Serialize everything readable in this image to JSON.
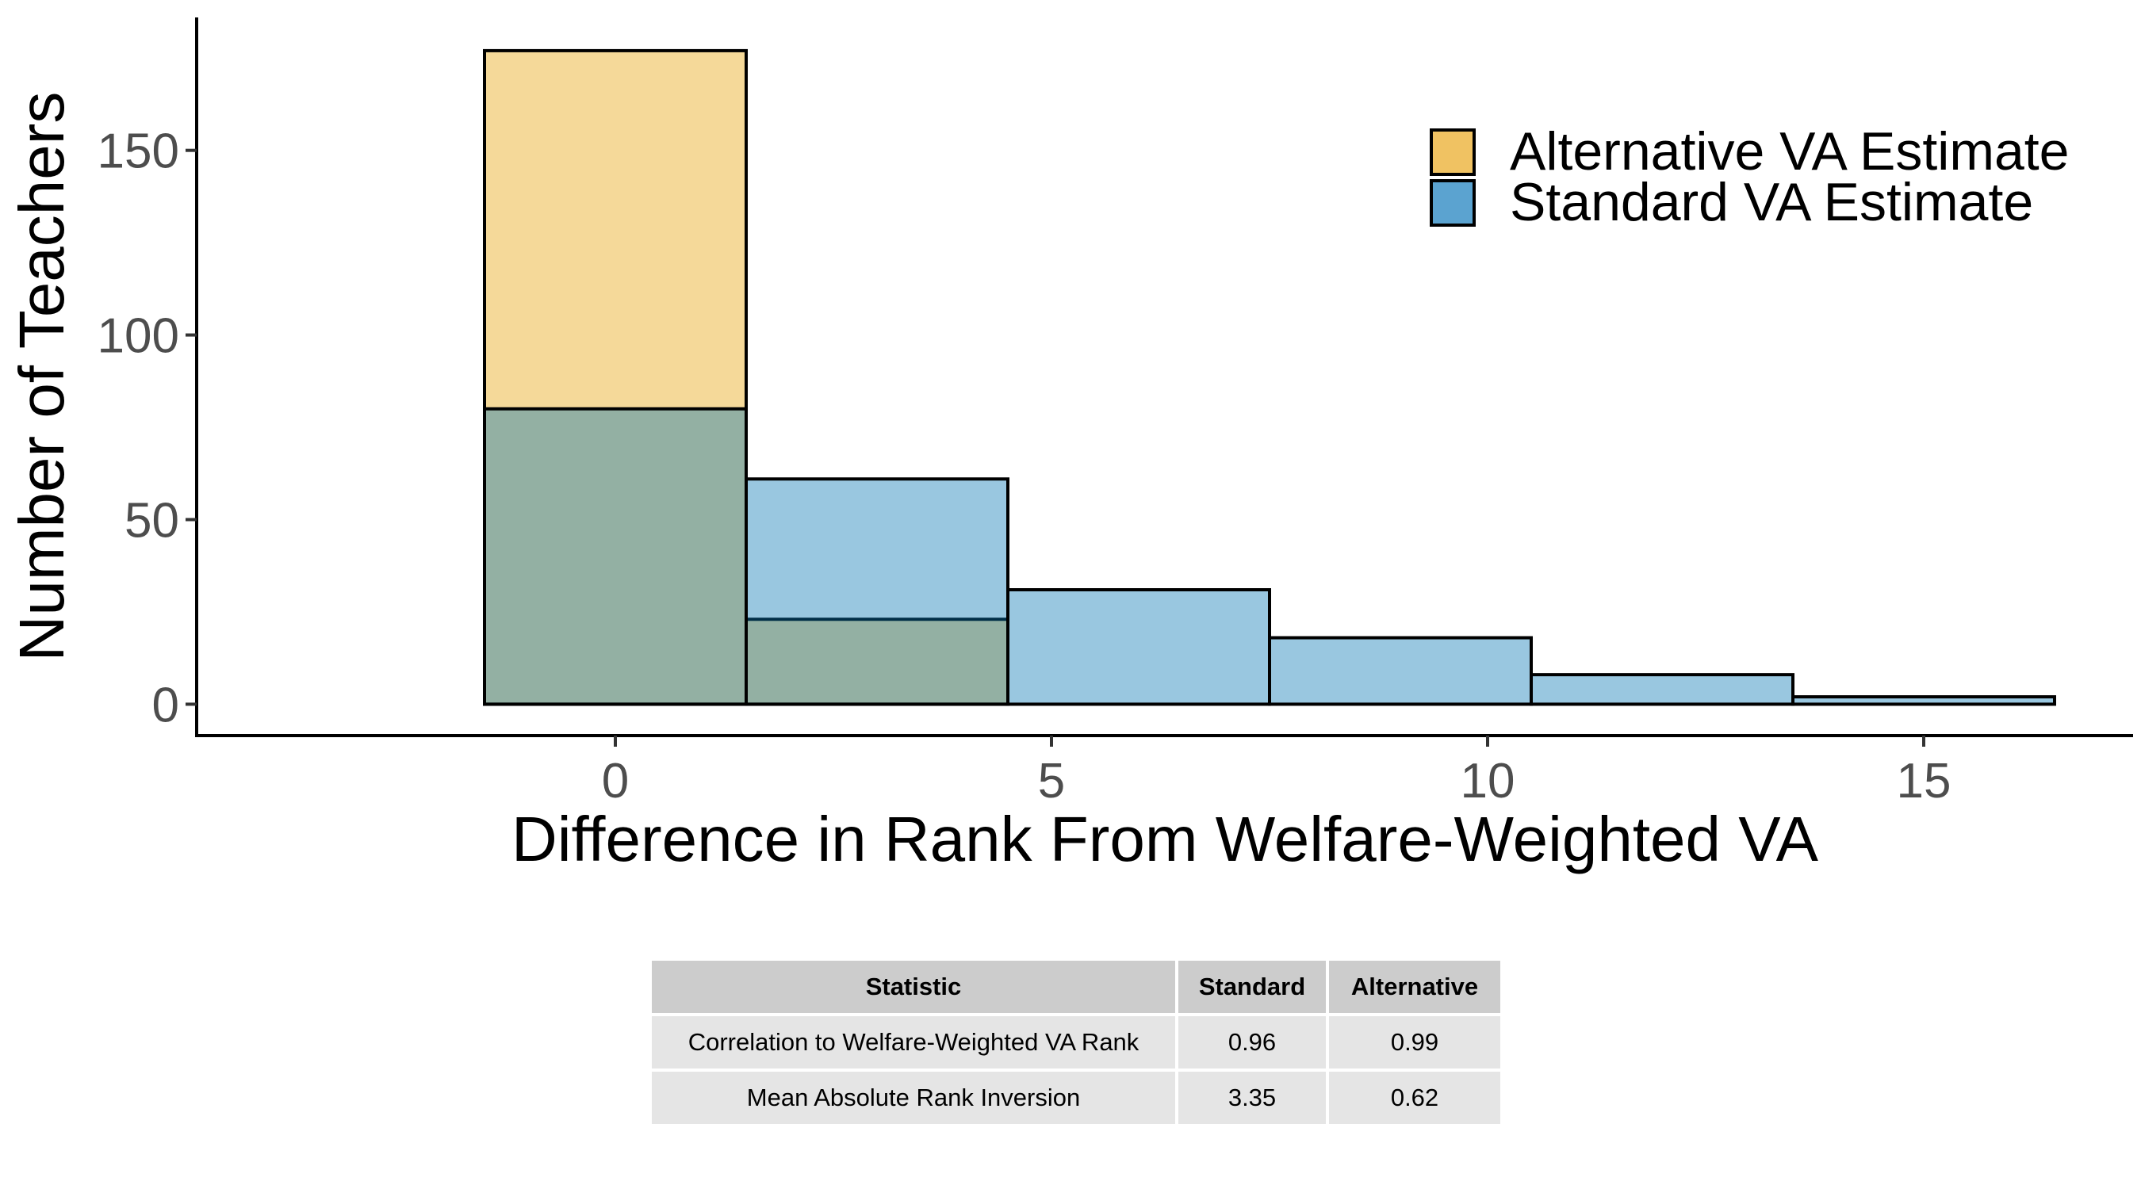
{
  "chart_data": {
    "type": "bar",
    "subtype": "overlapping-histogram",
    "xlabel": "Difference in Rank From Welfare-Weighted VA",
    "ylabel": "Number of Teachers",
    "xlim": [
      -4.8,
      17.4
    ],
    "ylim": [
      -8.5,
      186
    ],
    "x_ticks": [
      0,
      5,
      10,
      15
    ],
    "y_ticks": [
      0,
      50,
      100,
      150
    ],
    "bin_width": 3,
    "legend_position": "top-right",
    "grid": false,
    "series": [
      {
        "name": "Alternative VA Estimate",
        "color": "#E69F00",
        "fill_opacity": 0.4,
        "legend_color": "#F0C262",
        "bins": [
          {
            "start": -1.5,
            "end": 1.5,
            "count": 177
          },
          {
            "start": 1.5,
            "end": 4.5,
            "count": 23
          }
        ]
      },
      {
        "name": "Standard VA Estimate",
        "color": "#0072B2",
        "fill_opacity": 0.4,
        "legend_color": "#5BA3D0",
        "bins": [
          {
            "start": -1.5,
            "end": 1.5,
            "count": 80
          },
          {
            "start": 1.5,
            "end": 4.5,
            "count": 61
          },
          {
            "start": 4.5,
            "end": 7.5,
            "count": 31
          },
          {
            "start": 7.5,
            "end": 10.5,
            "count": 18
          },
          {
            "start": 10.5,
            "end": 13.5,
            "count": 8
          },
          {
            "start": 13.5,
            "end": 16.5,
            "count": 2
          }
        ]
      }
    ]
  },
  "table": {
    "headers": [
      "Statistic",
      "Standard",
      "Alternative"
    ],
    "rows": [
      [
        "Correlation to Welfare-Weighted VA Rank",
        "0.96",
        "0.99"
      ],
      [
        "Mean Absolute Rank Inversion",
        "3.35",
        "0.62"
      ]
    ]
  }
}
